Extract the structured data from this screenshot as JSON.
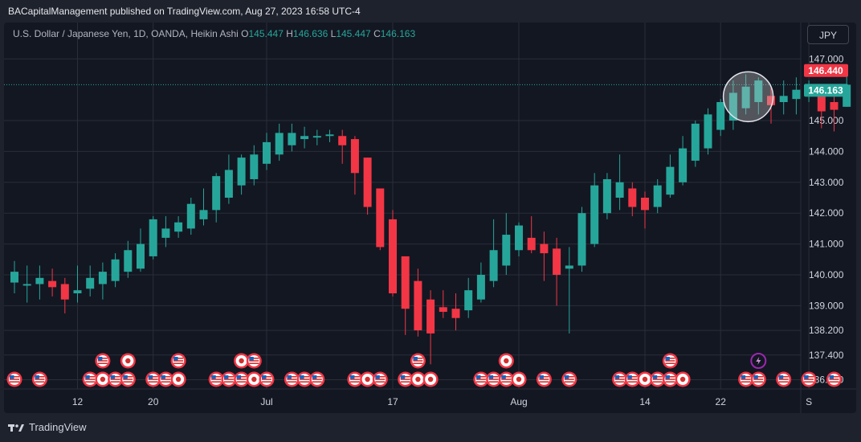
{
  "header": {
    "publisher": "BACapitalManagement published on TradingView.com, Aug 27, 2023 16:58 UTC-4"
  },
  "legend": {
    "symbol": "U.S. Dollar / Japanese Yen, 1D, OANDA, Heikin Ashi",
    "o_label": "O",
    "o_value": "145.447",
    "h_label": "H",
    "h_value": "146.636",
    "l_label": "L",
    "l_value": "145.447",
    "c_label": "C",
    "c_value": "146.163"
  },
  "currency_button": {
    "label": "JPY"
  },
  "footer": {
    "brand": "TradingView"
  },
  "colors": {
    "up": "#26a69a",
    "down": "#f23645",
    "background": "#131722",
    "grid": "#2a2e39",
    "axis_text": "#d1d4dc"
  },
  "chart_data": {
    "type": "candlestick",
    "style": "Heikin Ashi",
    "ylim": [
      136.3,
      147.45
    ],
    "y_ticks": [
      "136.600",
      "137.400",
      "138.200",
      "139.000",
      "140.000",
      "141.000",
      "142.000",
      "143.000",
      "144.000",
      "145.000",
      "147.000"
    ],
    "y_tick_values": [
      136.6,
      137.4,
      138.2,
      139.0,
      140.0,
      141.0,
      142.0,
      143.0,
      144.0,
      145.0,
      147.0
    ],
    "x_ticks": [
      {
        "label": "12",
        "index": 5
      },
      {
        "label": "20",
        "index": 11
      },
      {
        "label": "Jul",
        "index": 20
      },
      {
        "label": "17",
        "index": 30
      },
      {
        "label": "Aug",
        "index": 40
      },
      {
        "label": "14",
        "index": 50
      },
      {
        "label": "22",
        "index": 56
      },
      {
        "label": "S",
        "index": 63
      }
    ],
    "price_labels": [
      {
        "value": "146.440",
        "price": 146.44,
        "color": "#f23645"
      },
      {
        "value": "146.163",
        "price": 146.163,
        "color": "#26a69a"
      }
    ],
    "candles": [
      {
        "o": 139.75,
        "h": 140.45,
        "l": 139.4,
        "c": 140.1
      },
      {
        "o": 139.65,
        "h": 140.3,
        "l": 139.1,
        "c": 139.7
      },
      {
        "o": 139.7,
        "h": 140.3,
        "l": 139.2,
        "c": 139.9
      },
      {
        "o": 139.8,
        "h": 140.2,
        "l": 139.3,
        "c": 139.6
      },
      {
        "o": 139.7,
        "h": 139.9,
        "l": 138.75,
        "c": 139.2
      },
      {
        "o": 139.4,
        "h": 140.3,
        "l": 139.1,
        "c": 139.5
      },
      {
        "o": 139.55,
        "h": 140.3,
        "l": 139.3,
        "c": 139.9
      },
      {
        "o": 139.7,
        "h": 140.4,
        "l": 139.2,
        "c": 140.1
      },
      {
        "o": 139.8,
        "h": 140.7,
        "l": 139.6,
        "c": 140.5
      },
      {
        "o": 140.1,
        "h": 141.1,
        "l": 139.9,
        "c": 140.8
      },
      {
        "o": 140.2,
        "h": 141.5,
        "l": 140.1,
        "c": 141.0
      },
      {
        "o": 140.6,
        "h": 141.9,
        "l": 140.5,
        "c": 141.8
      },
      {
        "o": 141.2,
        "h": 141.9,
        "l": 140.9,
        "c": 141.5
      },
      {
        "o": 141.4,
        "h": 141.9,
        "l": 141.2,
        "c": 141.7
      },
      {
        "o": 141.5,
        "h": 142.5,
        "l": 141.3,
        "c": 142.3
      },
      {
        "o": 141.8,
        "h": 142.8,
        "l": 141.6,
        "c": 142.1
      },
      {
        "o": 142.1,
        "h": 143.3,
        "l": 141.7,
        "c": 143.2
      },
      {
        "o": 142.5,
        "h": 143.9,
        "l": 142.3,
        "c": 143.4
      },
      {
        "o": 142.9,
        "h": 143.9,
        "l": 142.6,
        "c": 143.8
      },
      {
        "o": 143.1,
        "h": 144.2,
        "l": 142.9,
        "c": 143.9
      },
      {
        "o": 143.6,
        "h": 144.6,
        "l": 143.4,
        "c": 144.3
      },
      {
        "o": 143.9,
        "h": 144.9,
        "l": 143.7,
        "c": 144.6
      },
      {
        "o": 144.2,
        "h": 144.9,
        "l": 144.0,
        "c": 144.6
      },
      {
        "o": 144.4,
        "h": 144.8,
        "l": 144.1,
        "c": 144.5
      },
      {
        "o": 144.45,
        "h": 144.7,
        "l": 144.2,
        "c": 144.5
      },
      {
        "o": 144.5,
        "h": 144.7,
        "l": 144.3,
        "c": 144.55
      },
      {
        "o": 144.5,
        "h": 144.7,
        "l": 143.6,
        "c": 144.2
      },
      {
        "o": 144.4,
        "h": 144.5,
        "l": 142.6,
        "c": 143.3
      },
      {
        "o": 143.8,
        "h": 143.8,
        "l": 141.95,
        "c": 142.2
      },
      {
        "o": 142.8,
        "h": 142.8,
        "l": 140.8,
        "c": 140.9
      },
      {
        "o": 141.8,
        "h": 142.1,
        "l": 139.3,
        "c": 139.4
      },
      {
        "o": 140.6,
        "h": 140.6,
        "l": 138.05,
        "c": 138.9
      },
      {
        "o": 139.8,
        "h": 140.2,
        "l": 138.0,
        "c": 138.2
      },
      {
        "o": 139.2,
        "h": 139.5,
        "l": 137.1,
        "c": 138.1
      },
      {
        "o": 138.95,
        "h": 139.5,
        "l": 138.6,
        "c": 138.8
      },
      {
        "o": 138.9,
        "h": 139.4,
        "l": 138.2,
        "c": 138.6
      },
      {
        "o": 138.85,
        "h": 139.9,
        "l": 138.6,
        "c": 139.5
      },
      {
        "o": 139.2,
        "h": 140.4,
        "l": 139.1,
        "c": 140.0
      },
      {
        "o": 139.8,
        "h": 141.8,
        "l": 139.6,
        "c": 140.8
      },
      {
        "o": 140.3,
        "h": 142.0,
        "l": 140.0,
        "c": 141.3
      },
      {
        "o": 140.8,
        "h": 141.7,
        "l": 140.6,
        "c": 141.6
      },
      {
        "o": 141.2,
        "h": 141.9,
        "l": 140.7,
        "c": 140.8
      },
      {
        "o": 141.0,
        "h": 141.4,
        "l": 139.8,
        "c": 140.7
      },
      {
        "o": 140.85,
        "h": 141.2,
        "l": 139.0,
        "c": 140.0
      },
      {
        "o": 140.2,
        "h": 140.9,
        "l": 138.1,
        "c": 140.3
      },
      {
        "o": 140.3,
        "h": 142.2,
        "l": 140.1,
        "c": 142.0
      },
      {
        "o": 141.0,
        "h": 143.3,
        "l": 140.9,
        "c": 142.9
      },
      {
        "o": 142.0,
        "h": 143.3,
        "l": 141.8,
        "c": 143.1
      },
      {
        "o": 142.5,
        "h": 143.9,
        "l": 142.1,
        "c": 143.0
      },
      {
        "o": 142.8,
        "h": 143.0,
        "l": 141.9,
        "c": 142.2
      },
      {
        "o": 142.5,
        "h": 142.7,
        "l": 141.5,
        "c": 142.1
      },
      {
        "o": 142.2,
        "h": 143.1,
        "l": 142.0,
        "c": 142.9
      },
      {
        "o": 142.6,
        "h": 143.9,
        "l": 142.5,
        "c": 143.5
      },
      {
        "o": 143.0,
        "h": 144.5,
        "l": 142.9,
        "c": 144.1
      },
      {
        "o": 143.7,
        "h": 145.0,
        "l": 143.5,
        "c": 144.9
      },
      {
        "o": 144.1,
        "h": 145.4,
        "l": 143.9,
        "c": 145.2
      },
      {
        "o": 144.7,
        "h": 145.7,
        "l": 144.5,
        "c": 145.6
      },
      {
        "o": 145.0,
        "h": 146.3,
        "l": 144.7,
        "c": 145.9
      },
      {
        "o": 145.4,
        "h": 146.5,
        "l": 145.2,
        "c": 146.1
      },
      {
        "o": 145.6,
        "h": 146.4,
        "l": 145.2,
        "c": 146.3
      },
      {
        "o": 145.8,
        "h": 146.1,
        "l": 144.9,
        "c": 145.5
      },
      {
        "o": 145.6,
        "h": 146.3,
        "l": 145.2,
        "c": 145.8
      },
      {
        "o": 145.7,
        "h": 146.4,
        "l": 145.2,
        "c": 146.0
      },
      {
        "o": 145.8,
        "h": 146.3,
        "l": 145.6,
        "c": 146.1
      },
      {
        "o": 145.9,
        "h": 146.0,
        "l": 144.75,
        "c": 145.3
      },
      {
        "o": 145.6,
        "h": 146.1,
        "l": 144.65,
        "c": 145.35
      },
      {
        "o": 145.447,
        "h": 146.636,
        "l": 145.447,
        "c": 146.163
      }
    ],
    "events": {
      "top_row": [
        {
          "index": 7,
          "flag": "us"
        },
        {
          "index": 9,
          "flag": "jp"
        },
        {
          "index": 13,
          "flag": "us"
        },
        {
          "index": 18,
          "flag": "jp"
        },
        {
          "index": 19,
          "flag": "us"
        },
        {
          "index": 32,
          "flag": "us"
        },
        {
          "index": 39,
          "flag": "jp"
        },
        {
          "index": 52,
          "flag": "us"
        },
        {
          "index": 59,
          "flag": "lightning"
        }
      ],
      "bottom_row": [
        {
          "index": 0,
          "flag": "us"
        },
        {
          "index": 2,
          "flag": "us"
        },
        {
          "index": 6,
          "flag": "us"
        },
        {
          "index": 7,
          "flag": "jp"
        },
        {
          "index": 8,
          "flag": "us"
        },
        {
          "index": 9,
          "flag": "us"
        },
        {
          "index": 11,
          "flag": "us"
        },
        {
          "index": 12,
          "flag": "us"
        },
        {
          "index": 13,
          "flag": "jp"
        },
        {
          "index": 16,
          "flag": "us"
        },
        {
          "index": 17,
          "flag": "us"
        },
        {
          "index": 18,
          "flag": "us"
        },
        {
          "index": 19,
          "flag": "jp"
        },
        {
          "index": 20,
          "flag": "us"
        },
        {
          "index": 22,
          "flag": "us"
        },
        {
          "index": 23,
          "flag": "us"
        },
        {
          "index": 24,
          "flag": "us"
        },
        {
          "index": 27,
          "flag": "us"
        },
        {
          "index": 28,
          "flag": "jp"
        },
        {
          "index": 29,
          "flag": "us"
        },
        {
          "index": 31,
          "flag": "us"
        },
        {
          "index": 32,
          "flag": "jp"
        },
        {
          "index": 33,
          "flag": "jp"
        },
        {
          "index": 37,
          "flag": "us"
        },
        {
          "index": 38,
          "flag": "us"
        },
        {
          "index": 39,
          "flag": "us"
        },
        {
          "index": 40,
          "flag": "jp"
        },
        {
          "index": 42,
          "flag": "us"
        },
        {
          "index": 44,
          "flag": "us"
        },
        {
          "index": 48,
          "flag": "us"
        },
        {
          "index": 49,
          "flag": "us"
        },
        {
          "index": 50,
          "flag": "jp"
        },
        {
          "index": 51,
          "flag": "us"
        },
        {
          "index": 52,
          "flag": "us"
        },
        {
          "index": 53,
          "flag": "jp"
        },
        {
          "index": 58,
          "flag": "us"
        },
        {
          "index": 59,
          "flag": "us"
        },
        {
          "index": 61,
          "flag": "us"
        },
        {
          "index": 63,
          "flag": "us"
        },
        {
          "index": 65,
          "flag": "us"
        }
      ]
    },
    "highlight": {
      "index": 58,
      "price": 145.8
    }
  }
}
